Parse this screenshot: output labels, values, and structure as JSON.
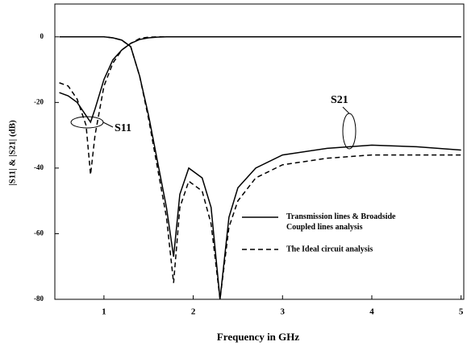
{
  "chart_data": {
    "type": "line",
    "xlabel": "Frequency in GHz",
    "ylabel": "|S11| & |S21| (dB)",
    "annotations": [
      "S11",
      "S21"
    ],
    "x": [
      0.5,
      0.6,
      0.7,
      0.8,
      0.85,
      0.9,
      1.0,
      1.1,
      1.2,
      1.3,
      1.4,
      1.5,
      1.6,
      1.7,
      1.78,
      1.85,
      1.95,
      2.1,
      2.2,
      2.3,
      2.4,
      2.5,
      2.7,
      3.0,
      3.5,
      4.0,
      4.5,
      5.0
    ],
    "series": [
      {
        "name": "Transmission lines & Broadside Coupled lines analysis",
        "color": "#000000",
        "dashed": false,
        "values": [
          0,
          0,
          0,
          0,
          0,
          0,
          0,
          -0.3,
          -1,
          -3,
          -12,
          -24,
          -38,
          -52,
          -67,
          -48,
          -40,
          -43,
          -52,
          -80,
          -55,
          -46,
          -40,
          -36,
          -34,
          -33,
          -33.5,
          -34.5
        ],
        "values_s11": [
          -17,
          -18,
          -20,
          -24,
          -26,
          -22,
          -13,
          -7,
          -4,
          -2,
          -0.8,
          -0.3,
          -0.1,
          0,
          0,
          0,
          0,
          0,
          0,
          0,
          0,
          0,
          0,
          0,
          0,
          0,
          0,
          0
        ]
      },
      {
        "name": "The Ideal circuit analysis",
        "color": "#000000",
        "dashed": true,
        "values": [
          0,
          0,
          0,
          0,
          0,
          0,
          0,
          -0.3,
          -1,
          -3,
          -12,
          -25,
          -40,
          -55,
          -75,
          -52,
          -44,
          -47,
          -57,
          -80,
          -58,
          -50,
          -43,
          -39,
          -37,
          -36,
          -36,
          -36
        ],
        "values_s11": [
          -14,
          -15,
          -19,
          -27,
          -42,
          -30,
          -15,
          -8,
          -4,
          -2,
          -0.5,
          -0.1,
          0,
          0,
          0,
          0,
          0,
          0,
          0,
          0,
          0,
          0,
          0,
          0,
          0,
          0,
          0,
          0
        ]
      }
    ],
    "xlim": [
      0.45,
      5.03
    ],
    "xticks": [
      1,
      2,
      3,
      4,
      5
    ],
    "ylim": [
      -80,
      10
    ],
    "yticks": [
      0,
      -20,
      -40,
      -60,
      -80
    ]
  }
}
